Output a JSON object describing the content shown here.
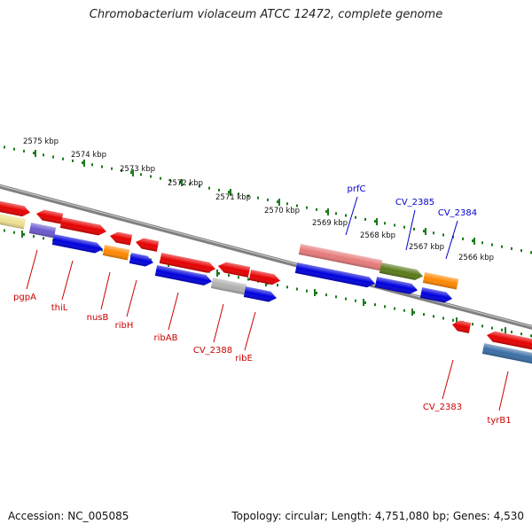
{
  "title": "Chromobacterium violaceum ATCC 12472, complete genome",
  "footer": {
    "accession": "Accession: NC_005085",
    "topology": "Topology: circular; Length: 4,751,080 bp; Genes: 4,530"
  },
  "colors": {
    "backbone": "#808080",
    "tick": "#1a7a1a",
    "label_forward": "#0000cc",
    "label_reverse": "#cc0000",
    "gene_red": "#e60000",
    "gene_blue": "#0000dd",
    "gene_orange": "#ff8800",
    "gene_olive": "#5a7a1a",
    "gene_pink": "#e67a7a",
    "gene_gray": "#b0b0b0",
    "gene_yellow": "#eee090",
    "gene_purple": "#6a5acd",
    "gene_steel": "#3a6ea5"
  },
  "scale_labels": [
    "2575 kbp",
    "2574 kbp",
    "2573 kbp",
    "2572 kbp",
    "2571 kbp",
    "2570 kbp",
    "2569 kbp",
    "2568 kbp",
    "2567 kbp",
    "2566 kbp"
  ],
  "gene_labels": {
    "forward": [
      "prfC",
      "CV_2385",
      "CV_2384"
    ],
    "reverse": [
      "pgpA",
      "thiL",
      "nusB",
      "ribH",
      "ribAB",
      "CV_2388",
      "ribE",
      "CV_2383",
      "tyrB1"
    ]
  }
}
